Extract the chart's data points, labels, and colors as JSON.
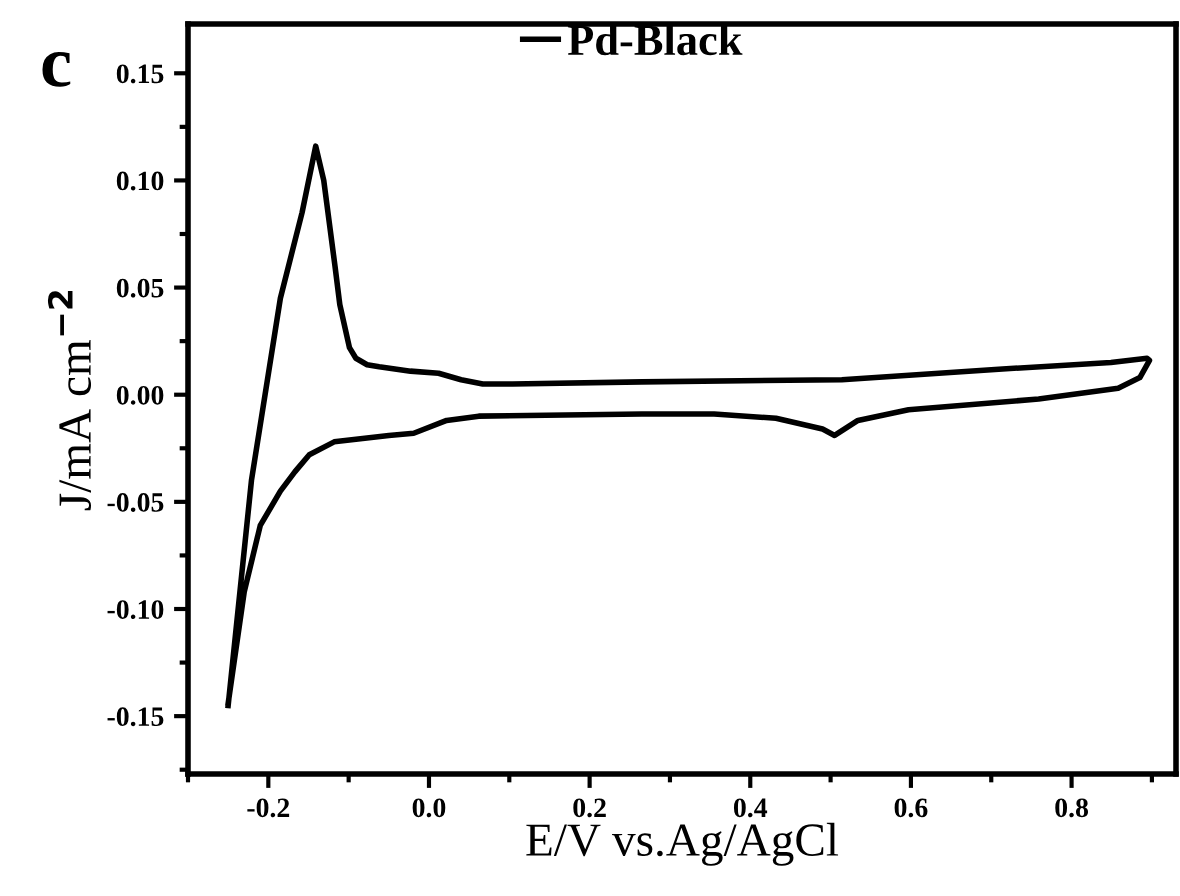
{
  "chart_data": {
    "type": "line",
    "xlabel": "E/V vs.Ag/AgCl",
    "ylabel": "J/mA cm$^{−2}$",
    "annotations": [
      "c"
    ],
    "xlim": [
      -0.3,
      0.93
    ],
    "ylim": [
      -0.177,
      0.173
    ],
    "xticks": [
      {
        "value": -0.2,
        "label": "-0.2"
      },
      {
        "value": 0.0,
        "label": "0.0"
      },
      {
        "value": 0.2,
        "label": "0.2"
      },
      {
        "value": 0.4,
        "label": "0.4"
      },
      {
        "value": 0.6,
        "label": "0.6"
      },
      {
        "value": 0.8,
        "label": "0.8"
      }
    ],
    "yticks": [
      {
        "value": -0.15,
        "label": "-0.15"
      },
      {
        "value": -0.1,
        "label": "-0.10"
      },
      {
        "value": -0.05,
        "label": "-0.05"
      },
      {
        "value": 0.0,
        "label": "0.00"
      },
      {
        "value": 0.05,
        "label": "0.05"
      },
      {
        "value": 0.1,
        "label": "0.10"
      },
      {
        "value": 0.15,
        "label": "0.15"
      }
    ],
    "grid": false,
    "legend": "top",
    "marker": "none",
    "line_style": "solid",
    "series": [
      {
        "name": "Pd-Black",
        "color": "#000000",
        "x": [
          -0.25,
          -0.221,
          -0.185,
          -0.158,
          -0.141,
          -0.131,
          -0.117,
          -0.111,
          -0.099,
          -0.091,
          -0.077,
          -0.062,
          -0.023,
          0.012,
          0.04,
          0.067,
          0.104,
          0.265,
          0.514,
          0.714,
          0.849,
          0.894,
          0.897,
          0.885,
          0.858,
          0.759,
          0.597,
          0.534,
          0.505,
          0.49,
          0.432,
          0.355,
          0.265,
          0.062,
          0.022,
          -0.019,
          -0.05,
          -0.118,
          -0.149,
          -0.167,
          -0.185,
          -0.21,
          -0.23,
          -0.25
        ],
        "values": [
          -0.145,
          -0.04,
          0.045,
          0.085,
          0.116,
          0.1,
          0.06,
          0.042,
          0.022,
          0.017,
          0.014,
          0.013,
          0.011,
          0.01,
          0.007,
          0.005,
          0.005,
          0.006,
          0.007,
          0.012,
          0.015,
          0.017,
          0.016,
          0.008,
          0.003,
          -0.002,
          -0.007,
          -0.012,
          -0.019,
          -0.016,
          -0.011,
          -0.009,
          -0.009,
          -0.01,
          -0.012,
          -0.018,
          -0.019,
          -0.022,
          -0.028,
          -0.036,
          -0.045,
          -0.061,
          -0.092,
          -0.144
        ]
      }
    ]
  }
}
